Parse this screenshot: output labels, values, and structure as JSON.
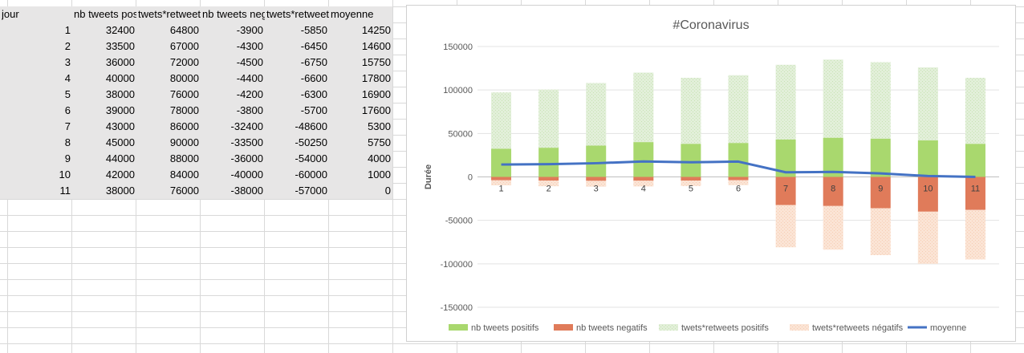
{
  "sheet": {
    "headers": [
      "jour",
      "nb tweets positifs",
      "twets*retweets positifs",
      "nb tweets negatifs",
      "twets*retweets négatifs",
      "moyenne"
    ],
    "rows": [
      [
        1,
        32400,
        64800,
        -3900,
        -5850,
        14250
      ],
      [
        2,
        33500,
        67000,
        -4300,
        -6450,
        14600
      ],
      [
        3,
        36000,
        72000,
        -4500,
        -6750,
        15750
      ],
      [
        4,
        40000,
        80000,
        -4400,
        -6600,
        17800
      ],
      [
        5,
        38000,
        76000,
        -4200,
        -6300,
        16900
      ],
      [
        6,
        39000,
        78000,
        -3800,
        -5700,
        17600
      ],
      [
        7,
        43000,
        86000,
        -32400,
        -48600,
        5300
      ],
      [
        8,
        45000,
        90000,
        -33500,
        -50250,
        5750
      ],
      [
        9,
        44000,
        88000,
        -36000,
        -54000,
        4000
      ],
      [
        10,
        42000,
        84000,
        -40000,
        -60000,
        1000
      ],
      [
        11,
        38000,
        76000,
        -38000,
        -57000,
        0
      ]
    ]
  },
  "chart_data": {
    "type": "bar",
    "stacked": true,
    "title": "#Coronavirus",
    "xlabel": "",
    "ylabel": "Durée",
    "ylim": [
      -150000,
      150000
    ],
    "yticks": [
      150000,
      100000,
      50000,
      0,
      -50000,
      -100000,
      -150000
    ],
    "grid": true,
    "legend_position": "bottom",
    "categories": [
      "1",
      "2",
      "3",
      "4",
      "5",
      "6",
      "7",
      "8",
      "9",
      "10",
      "11"
    ],
    "series": [
      {
        "name": "nb tweets positifs",
        "kind": "bar",
        "color": "#a9d86e",
        "values": [
          32400,
          33500,
          36000,
          40000,
          38000,
          39000,
          43000,
          45000,
          44000,
          42000,
          38000
        ]
      },
      {
        "name": "nb tweets negatifs",
        "kind": "bar",
        "color": "#e07b5a",
        "values": [
          -3900,
          -4300,
          -4500,
          -4400,
          -4200,
          -3800,
          -32400,
          -33500,
          -36000,
          -40000,
          -38000
        ]
      },
      {
        "name": "twets*retweets positifs",
        "kind": "bar",
        "color": "#e2efd9",
        "values": [
          64800,
          67000,
          72000,
          80000,
          76000,
          78000,
          86000,
          90000,
          88000,
          84000,
          76000
        ]
      },
      {
        "name": "twets*retweets négatifs",
        "kind": "bar",
        "color": "#fbe4d5",
        "values": [
          -5850,
          -6450,
          -6750,
          -6600,
          -6300,
          -5700,
          -48600,
          -50250,
          -54000,
          -60000,
          -57000
        ]
      },
      {
        "name": "moyenne",
        "kind": "line",
        "color": "#4472c4",
        "values": [
          14250,
          14600,
          15750,
          17800,
          16900,
          17600,
          5300,
          5750,
          4000,
          1000,
          0
        ]
      }
    ]
  }
}
